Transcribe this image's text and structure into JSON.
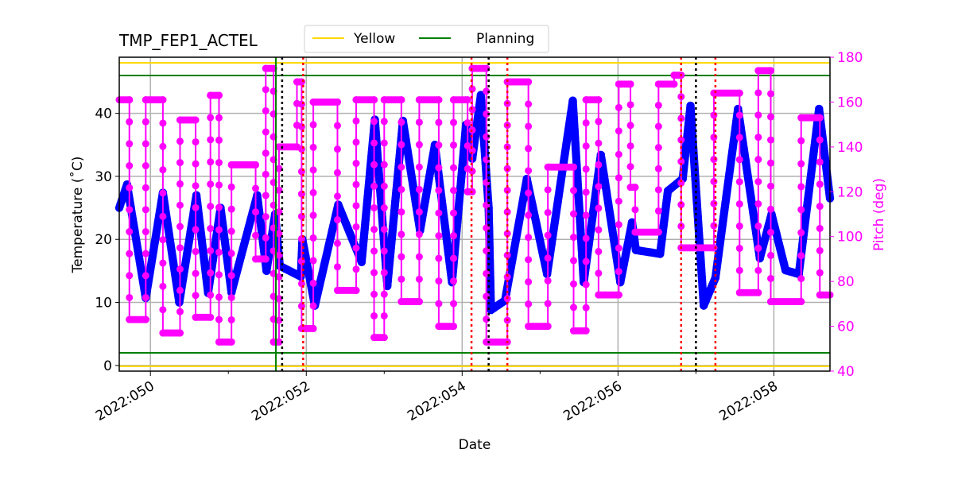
{
  "chart_data": {
    "type": "line",
    "title": "TMP_FEP1_ACTEL",
    "xlabel": "Date",
    "ylabel": "Temperature ($^\\circ$C)",
    "ylabel_display": "Temperature ($^\\circ$C)",
    "ylabel_text": "Temperature (˚C)",
    "y2label": "Pitch (deg)",
    "xlim": [
      49.6,
      58.72
    ],
    "ylim": [
      -0.9,
      48.9
    ],
    "y2lim": [
      40,
      180
    ],
    "grid": true,
    "legend_position": "top-center",
    "x_ticks": [
      {
        "value": 50,
        "label": "2022:050"
      },
      {
        "value": 52,
        "label": "2022:052"
      },
      {
        "value": 54,
        "label": "2022:054"
      },
      {
        "value": 56,
        "label": "2022:056"
      },
      {
        "value": 58,
        "label": "2022:058"
      }
    ],
    "x_minor_ticks": [
      51,
      53,
      55,
      57
    ],
    "y_ticks": [
      0,
      10,
      20,
      30,
      40
    ],
    "y2_ticks": [
      40,
      60,
      80,
      100,
      120,
      140,
      160,
      180
    ],
    "colors": {
      "temperature": "#0000ff",
      "pitch": "#ff00ff",
      "yellow": "#ffd700",
      "planning": "#008000",
      "grid": "#b0b0b0",
      "red_dotted": "#ff0000",
      "black_dotted": "#000000"
    },
    "limits": [
      {
        "name": "Yellow",
        "values": [
          48,
          0
        ],
        "color": "#ffd700"
      },
      {
        "name": "Planning",
        "values": [
          46,
          2
        ],
        "color": "#008000"
      }
    ],
    "legend": [
      "Yellow",
      "Planning"
    ],
    "vertical_lines": {
      "green_solid": [
        51.61
      ],
      "black_dotted": [
        51.69,
        54.34,
        57.0
      ],
      "red_dotted": [
        51.96,
        54.12,
        54.58,
        56.81,
        57.25
      ]
    },
    "series": [
      {
        "axis": "left",
        "color": "#0000ff",
        "points": [
          [
            49.6,
            25
          ],
          [
            49.7,
            28.7
          ],
          [
            49.94,
            10.7
          ],
          [
            50.16,
            27.4
          ],
          [
            50.37,
            10
          ],
          [
            50.59,
            27
          ],
          [
            50.74,
            11.5
          ],
          [
            50.9,
            25
          ],
          [
            51.04,
            11.6
          ],
          [
            51.37,
            27
          ],
          [
            51.49,
            15
          ],
          [
            51.6,
            24
          ],
          [
            51.66,
            15.8
          ],
          [
            51.93,
            14.1
          ],
          [
            51.95,
            20
          ],
          [
            52.11,
            9.5
          ],
          [
            52.41,
            25.5
          ],
          [
            52.71,
            16.4
          ],
          [
            52.88,
            39
          ],
          [
            53.04,
            12.6
          ],
          [
            53.24,
            38.8
          ],
          [
            53.46,
            21.4
          ],
          [
            53.65,
            35
          ],
          [
            53.87,
            13.2
          ],
          [
            54.05,
            38.2
          ],
          [
            54.13,
            32.8
          ],
          [
            54.24,
            42.9
          ],
          [
            54.34,
            25
          ],
          [
            54.37,
            8.8
          ],
          [
            54.55,
            10.3
          ],
          [
            54.83,
            29.6
          ],
          [
            55.09,
            14.5
          ],
          [
            55.42,
            42
          ],
          [
            55.56,
            13.2
          ],
          [
            55.78,
            33.4
          ],
          [
            56.03,
            13.2
          ],
          [
            56.18,
            22.7
          ],
          [
            56.23,
            18.3
          ],
          [
            56.54,
            17.7
          ],
          [
            56.64,
            27.7
          ],
          [
            56.83,
            29.6
          ],
          [
            56.93,
            41.2
          ],
          [
            57.1,
            9.5
          ],
          [
            57.25,
            13.9
          ],
          [
            57.54,
            40.7
          ],
          [
            57.82,
            17
          ],
          [
            57.97,
            24
          ],
          [
            58.15,
            15.1
          ],
          [
            58.32,
            14.5
          ],
          [
            58.58,
            40.7
          ],
          [
            58.72,
            26.5
          ]
        ]
      },
      {
        "axis": "right",
        "color": "#ff00ff",
        "points": [
          [
            49.6,
            161
          ],
          [
            49.73,
            161
          ],
          [
            49.73,
            63
          ],
          [
            49.94,
            63
          ],
          [
            49.94,
            161
          ],
          [
            50.16,
            161
          ],
          [
            50.16,
            57
          ],
          [
            50.38,
            57
          ],
          [
            50.38,
            152
          ],
          [
            50.58,
            152
          ],
          [
            50.58,
            64
          ],
          [
            50.77,
            64
          ],
          [
            50.77,
            163
          ],
          [
            50.88,
            163
          ],
          [
            50.88,
            53
          ],
          [
            51.04,
            53
          ],
          [
            51.04,
            132
          ],
          [
            51.35,
            132
          ],
          [
            51.35,
            90
          ],
          [
            51.48,
            90
          ],
          [
            51.48,
            175
          ],
          [
            51.58,
            175
          ],
          [
            51.58,
            53
          ],
          [
            51.65,
            53
          ],
          [
            51.65,
            140
          ],
          [
            51.88,
            140
          ],
          [
            51.88,
            169
          ],
          [
            51.94,
            169
          ],
          [
            51.94,
            59
          ],
          [
            52.09,
            59
          ],
          [
            52.09,
            160
          ],
          [
            52.4,
            160
          ],
          [
            52.4,
            76
          ],
          [
            52.64,
            76
          ],
          [
            52.64,
            161
          ],
          [
            52.87,
            161
          ],
          [
            52.87,
            55
          ],
          [
            53.0,
            55
          ],
          [
            53.0,
            161
          ],
          [
            53.22,
            161
          ],
          [
            53.22,
            71
          ],
          [
            53.45,
            71
          ],
          [
            53.45,
            161
          ],
          [
            53.7,
            161
          ],
          [
            53.7,
            60
          ],
          [
            53.89,
            60
          ],
          [
            53.89,
            161
          ],
          [
            54.07,
            161
          ],
          [
            54.07,
            120
          ],
          [
            54.13,
            120
          ],
          [
            54.13,
            175
          ],
          [
            54.31,
            175
          ],
          [
            54.31,
            53
          ],
          [
            54.58,
            53
          ],
          [
            54.58,
            169
          ],
          [
            54.85,
            169
          ],
          [
            54.85,
            60
          ],
          [
            55.1,
            60
          ],
          [
            55.1,
            131
          ],
          [
            55.43,
            131
          ],
          [
            55.43,
            58
          ],
          [
            55.59,
            58
          ],
          [
            55.59,
            161
          ],
          [
            55.75,
            161
          ],
          [
            55.75,
            74
          ],
          [
            56.01,
            74
          ],
          [
            56.01,
            168
          ],
          [
            56.16,
            168
          ],
          [
            56.16,
            122
          ],
          [
            56.22,
            122
          ],
          [
            56.22,
            102
          ],
          [
            56.52,
            102
          ],
          [
            56.52,
            168
          ],
          [
            56.72,
            168
          ],
          [
            56.72,
            172
          ],
          [
            56.81,
            172
          ],
          [
            56.81,
            95
          ],
          [
            57.23,
            95
          ],
          [
            57.23,
            164
          ],
          [
            57.56,
            164
          ],
          [
            57.56,
            75
          ],
          [
            57.8,
            75
          ],
          [
            57.8,
            174
          ],
          [
            57.96,
            174
          ],
          [
            57.96,
            71
          ],
          [
            58.35,
            71
          ],
          [
            58.35,
            153
          ],
          [
            58.59,
            153
          ],
          [
            58.59,
            74
          ],
          [
            58.72,
            74
          ]
        ]
      }
    ]
  }
}
